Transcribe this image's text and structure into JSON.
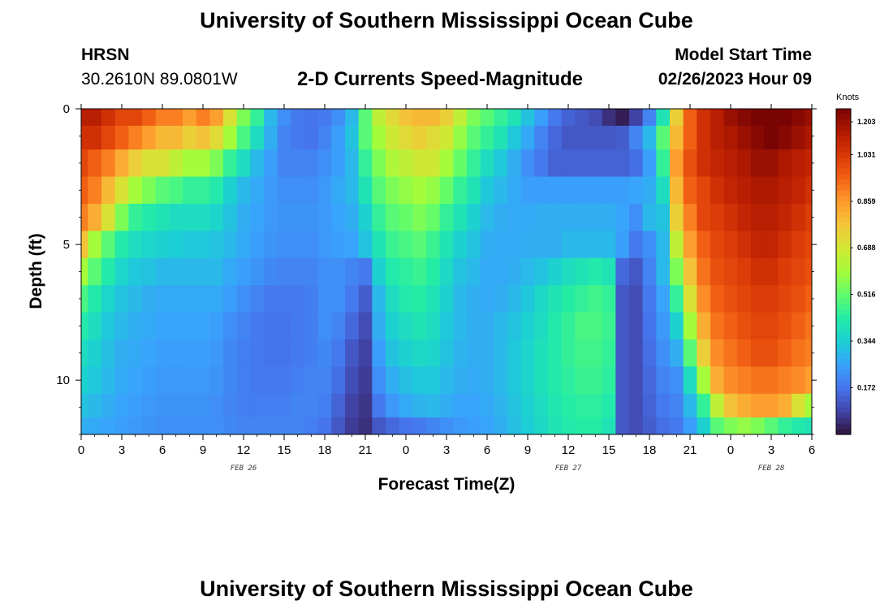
{
  "header": {
    "title": "University of Southern Mississippi Ocean Cube",
    "station": "HRSN",
    "location": "30.2610N  89.0801W",
    "chart_title": "2-D Currents Speed-Magnitude",
    "model_start_label": "Model Start Time",
    "model_start_value": "02/26/2023 Hour 09"
  },
  "footer": {
    "title": "University of Southern Mississippi Ocean Cube"
  },
  "colors": {
    "scale": [
      "#30123b",
      "#4145ab",
      "#4675ed",
      "#39a2fc",
      "#1bcfd4",
      "#24eca6",
      "#61fc6c",
      "#a4fc3b",
      "#d1e834",
      "#f3c63a",
      "#fe9b2d",
      "#f36315",
      "#d93806",
      "#b11901",
      "#7a0403"
    ]
  },
  "chart_data": {
    "type": "heatmap",
    "title": "2-D Currents Speed-Magnitude",
    "xlabel": "Forecast Time(Z)",
    "ylabel": "Depth (ft)",
    "colorbar_label": "Knots",
    "x_tick_labels": [
      "0",
      "3",
      "6",
      "9",
      "12",
      "15",
      "18",
      "21",
      "0",
      "3",
      "6",
      "9",
      "12",
      "15",
      "18",
      "21",
      "0",
      "3",
      "6"
    ],
    "x_range_hours": [
      0,
      54
    ],
    "date_labels": [
      {
        "label": "FEB 26",
        "at_hour": 12
      },
      {
        "label": "FEB 27",
        "at_hour": 36
      },
      {
        "label": "FEB 28",
        "at_hour": 51
      }
    ],
    "y_ticks": [
      0,
      5,
      10
    ],
    "ylim": [
      0,
      12
    ],
    "y_inverted": true,
    "colorbar_ticks": [
      1.203,
      1.031,
      0.859,
      0.688,
      0.516,
      0.344,
      0.172
    ],
    "colorbar_range": [
      0.0,
      1.2
    ],
    "depth_rows_ft": [
      0.25,
      1.0,
      2.0,
      3.0,
      4.0,
      5.0,
      6.0,
      7.0,
      8.0,
      9.0,
      10.0,
      11.0,
      11.75
    ],
    "time_hours": [
      0,
      1,
      2,
      3,
      4,
      5,
      6,
      7,
      8,
      9,
      10,
      11,
      12,
      13,
      14,
      15,
      16,
      17,
      18,
      19,
      20,
      21,
      22,
      23,
      24,
      25,
      26,
      27,
      28,
      29,
      30,
      31,
      32,
      33,
      34,
      35,
      36,
      37,
      38,
      39,
      40,
      41,
      42,
      43,
      44,
      45,
      46,
      47,
      48,
      49,
      50,
      51,
      52,
      53,
      54
    ],
    "values": [
      [
        1.1,
        1.1,
        1.05,
        1.0,
        1.0,
        0.95,
        0.9,
        0.9,
        0.85,
        0.9,
        0.85,
        0.7,
        0.55,
        0.45,
        0.3,
        0.22,
        0.18,
        0.17,
        0.18,
        0.22,
        0.3,
        0.5,
        0.65,
        0.72,
        0.78,
        0.8,
        0.8,
        0.75,
        0.65,
        0.55,
        0.5,
        0.45,
        0.4,
        0.32,
        0.25,
        0.18,
        0.14,
        0.12,
        0.1,
        0.05,
        0.02,
        0.08,
        0.2,
        0.4,
        0.75,
        0.95,
        1.05,
        1.1,
        1.15,
        1.18,
        1.2,
        1.2,
        1.2,
        1.18,
        1.15
      ],
      [
        1.05,
        1.05,
        1.0,
        0.95,
        0.9,
        0.85,
        0.8,
        0.8,
        0.75,
        0.78,
        0.72,
        0.6,
        0.48,
        0.38,
        0.28,
        0.2,
        0.18,
        0.17,
        0.2,
        0.25,
        0.32,
        0.5,
        0.6,
        0.68,
        0.72,
        0.75,
        0.72,
        0.68,
        0.58,
        0.5,
        0.45,
        0.4,
        0.33,
        0.27,
        0.2,
        0.15,
        0.12,
        0.12,
        0.12,
        0.12,
        0.13,
        0.2,
        0.3,
        0.5,
        0.8,
        0.95,
        1.05,
        1.1,
        1.12,
        1.15,
        1.18,
        1.2,
        1.18,
        1.15,
        1.12
      ],
      [
        1.0,
        0.95,
        0.9,
        0.82,
        0.75,
        0.7,
        0.7,
        0.65,
        0.6,
        0.6,
        0.55,
        0.45,
        0.38,
        0.3,
        0.25,
        0.2,
        0.2,
        0.2,
        0.22,
        0.25,
        0.3,
        0.45,
        0.55,
        0.62,
        0.65,
        0.68,
        0.68,
        0.6,
        0.52,
        0.45,
        0.38,
        0.33,
        0.28,
        0.22,
        0.18,
        0.14,
        0.14,
        0.14,
        0.14,
        0.14,
        0.14,
        0.16,
        0.25,
        0.45,
        0.85,
        0.98,
        1.05,
        1.08,
        1.1,
        1.12,
        1.15,
        1.15,
        1.12,
        1.1,
        1.08
      ],
      [
        0.95,
        0.9,
        0.8,
        0.7,
        0.6,
        0.55,
        0.5,
        0.48,
        0.45,
        0.45,
        0.42,
        0.35,
        0.3,
        0.27,
        0.24,
        0.22,
        0.22,
        0.22,
        0.24,
        0.27,
        0.3,
        0.4,
        0.5,
        0.55,
        0.58,
        0.6,
        0.58,
        0.52,
        0.45,
        0.4,
        0.33,
        0.3,
        0.27,
        0.25,
        0.25,
        0.25,
        0.25,
        0.25,
        0.25,
        0.25,
        0.25,
        0.26,
        0.28,
        0.38,
        0.8,
        0.95,
        1.0,
        1.05,
        1.08,
        1.1,
        1.12,
        1.12,
        1.1,
        1.08,
        1.05
      ],
      [
        0.9,
        0.82,
        0.7,
        0.55,
        0.45,
        0.42,
        0.4,
        0.38,
        0.38,
        0.38,
        0.36,
        0.32,
        0.28,
        0.26,
        0.24,
        0.23,
        0.23,
        0.23,
        0.24,
        0.26,
        0.28,
        0.35,
        0.45,
        0.5,
        0.52,
        0.55,
        0.52,
        0.45,
        0.4,
        0.35,
        0.3,
        0.28,
        0.27,
        0.27,
        0.28,
        0.28,
        0.28,
        0.28,
        0.28,
        0.28,
        0.26,
        0.22,
        0.3,
        0.32,
        0.75,
        0.9,
        1.0,
        1.02,
        1.05,
        1.08,
        1.1,
        1.1,
        1.08,
        1.05,
        1.02
      ],
      [
        0.78,
        0.6,
        0.5,
        0.42,
        0.38,
        0.36,
        0.35,
        0.34,
        0.33,
        0.33,
        0.32,
        0.3,
        0.27,
        0.25,
        0.23,
        0.22,
        0.22,
        0.22,
        0.24,
        0.25,
        0.26,
        0.32,
        0.4,
        0.46,
        0.48,
        0.5,
        0.46,
        0.4,
        0.35,
        0.32,
        0.28,
        0.27,
        0.27,
        0.28,
        0.28,
        0.28,
        0.3,
        0.3,
        0.3,
        0.3,
        0.25,
        0.18,
        0.22,
        0.3,
        0.65,
        0.85,
        0.95,
        1.0,
        1.02,
        1.05,
        1.08,
        1.08,
        1.05,
        1.02,
        1.0
      ],
      [
        0.6,
        0.5,
        0.42,
        0.36,
        0.33,
        0.32,
        0.3,
        0.3,
        0.3,
        0.3,
        0.3,
        0.27,
        0.25,
        0.23,
        0.21,
        0.2,
        0.2,
        0.2,
        0.22,
        0.22,
        0.2,
        0.18,
        0.35,
        0.42,
        0.44,
        0.46,
        0.43,
        0.37,
        0.32,
        0.3,
        0.27,
        0.27,
        0.28,
        0.3,
        0.32,
        0.35,
        0.38,
        0.4,
        0.42,
        0.4,
        0.15,
        0.12,
        0.2,
        0.3,
        0.55,
        0.78,
        0.92,
        0.98,
        1.0,
        1.02,
        1.05,
        1.05,
        1.02,
        1.0,
        0.98
      ],
      [
        0.48,
        0.42,
        0.36,
        0.32,
        0.3,
        0.28,
        0.27,
        0.27,
        0.27,
        0.27,
        0.27,
        0.25,
        0.22,
        0.2,
        0.18,
        0.18,
        0.18,
        0.19,
        0.22,
        0.22,
        0.18,
        0.13,
        0.3,
        0.38,
        0.42,
        0.43,
        0.4,
        0.35,
        0.3,
        0.28,
        0.27,
        0.28,
        0.3,
        0.33,
        0.37,
        0.4,
        0.43,
        0.45,
        0.47,
        0.45,
        0.12,
        0.1,
        0.18,
        0.26,
        0.45,
        0.7,
        0.88,
        0.95,
        0.98,
        1.0,
        1.02,
        1.02,
        1.0,
        0.98,
        0.95
      ],
      [
        0.42,
        0.38,
        0.33,
        0.3,
        0.28,
        0.27,
        0.26,
        0.26,
        0.26,
        0.26,
        0.25,
        0.22,
        0.2,
        0.18,
        0.17,
        0.17,
        0.18,
        0.19,
        0.22,
        0.2,
        0.15,
        0.1,
        0.28,
        0.35,
        0.38,
        0.4,
        0.38,
        0.33,
        0.3,
        0.28,
        0.28,
        0.3,
        0.32,
        0.35,
        0.38,
        0.42,
        0.45,
        0.48,
        0.48,
        0.46,
        0.12,
        0.1,
        0.17,
        0.24,
        0.35,
        0.6,
        0.82,
        0.92,
        0.95,
        0.98,
        1.0,
        1.0,
        0.98,
        0.95,
        0.92
      ],
      [
        0.38,
        0.35,
        0.31,
        0.28,
        0.27,
        0.26,
        0.25,
        0.25,
        0.25,
        0.25,
        0.24,
        0.21,
        0.19,
        0.18,
        0.17,
        0.17,
        0.18,
        0.19,
        0.21,
        0.18,
        0.12,
        0.08,
        0.25,
        0.32,
        0.35,
        0.37,
        0.36,
        0.32,
        0.29,
        0.28,
        0.28,
        0.3,
        0.33,
        0.36,
        0.39,
        0.42,
        0.45,
        0.47,
        0.47,
        0.45,
        0.12,
        0.1,
        0.16,
        0.22,
        0.28,
        0.5,
        0.75,
        0.88,
        0.92,
        0.95,
        0.98,
        0.98,
        0.95,
        0.92,
        0.9
      ],
      [
        0.35,
        0.33,
        0.3,
        0.27,
        0.26,
        0.25,
        0.24,
        0.24,
        0.24,
        0.24,
        0.23,
        0.21,
        0.19,
        0.18,
        0.18,
        0.18,
        0.19,
        0.2,
        0.2,
        0.16,
        0.1,
        0.07,
        0.22,
        0.28,
        0.31,
        0.33,
        0.33,
        0.3,
        0.28,
        0.27,
        0.28,
        0.3,
        0.33,
        0.36,
        0.39,
        0.42,
        0.44,
        0.46,
        0.46,
        0.44,
        0.12,
        0.1,
        0.15,
        0.2,
        0.22,
        0.38,
        0.6,
        0.82,
        0.88,
        0.9,
        0.92,
        0.92,
        0.9,
        0.88,
        0.85
      ],
      [
        0.32,
        0.3,
        0.28,
        0.26,
        0.25,
        0.24,
        0.23,
        0.23,
        0.23,
        0.23,
        0.22,
        0.2,
        0.19,
        0.19,
        0.19,
        0.19,
        0.2,
        0.2,
        0.19,
        0.14,
        0.08,
        0.06,
        0.18,
        0.24,
        0.27,
        0.29,
        0.3,
        0.28,
        0.26,
        0.26,
        0.27,
        0.29,
        0.32,
        0.35,
        0.38,
        0.41,
        0.43,
        0.44,
        0.44,
        0.42,
        0.12,
        0.1,
        0.14,
        0.18,
        0.2,
        0.3,
        0.45,
        0.65,
        0.78,
        0.82,
        0.85,
        0.85,
        0.82,
        0.7,
        0.6
      ],
      [
        0.28,
        0.27,
        0.26,
        0.25,
        0.24,
        0.23,
        0.22,
        0.22,
        0.22,
        0.22,
        0.22,
        0.21,
        0.2,
        0.2,
        0.2,
        0.2,
        0.2,
        0.19,
        0.17,
        0.12,
        0.07,
        0.05,
        0.12,
        0.15,
        0.17,
        0.18,
        0.2,
        0.22,
        0.24,
        0.25,
        0.26,
        0.28,
        0.31,
        0.34,
        0.37,
        0.4,
        0.42,
        0.43,
        0.43,
        0.4,
        0.12,
        0.1,
        0.13,
        0.16,
        0.18,
        0.25,
        0.35,
        0.5,
        0.55,
        0.58,
        0.55,
        0.5,
        0.45,
        0.42,
        0.4
      ]
    ]
  }
}
